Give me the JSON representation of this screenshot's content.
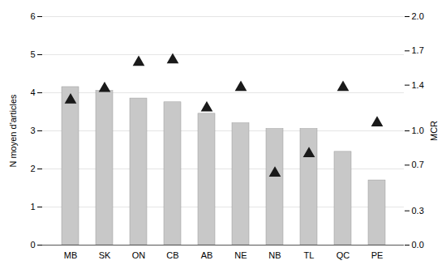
{
  "chart_data": {
    "type": "bar",
    "categories": [
      "MB",
      "SK",
      "ON",
      "CB",
      "AB",
      "NE",
      "NB",
      "TL",
      "QC",
      "PE"
    ],
    "series": [
      {
        "type": "bar",
        "color": "#c8c8c8",
        "values": [
          4.15,
          4.05,
          3.85,
          3.75,
          3.45,
          3.2,
          3.05,
          3.05,
          2.45,
          1.7
        ]
      },
      {
        "type": "scatter",
        "axis": "y2",
        "marker": "triangle",
        "color": "#1a1a1a",
        "values": [
          1.27,
          1.37,
          1.6,
          1.62,
          1.2,
          1.38,
          0.63,
          0.8,
          1.38,
          1.07
        ]
      }
    ],
    "ylabel": "N moyen d'articles",
    "y2label": "MCR",
    "ylim": [
      0,
      6
    ],
    "yticks": [
      0,
      1,
      2,
      3,
      4,
      5,
      6
    ],
    "y2lim": [
      0.0,
      2.0
    ],
    "y2ticks": [
      {
        "value": 0.0,
        "label": "0.0"
      },
      0.3,
      0.7,
      {
        "value": 1.0,
        "label": "1.0"
      },
      1.4,
      1.7,
      {
        "value": 2.0,
        "label": "2.0"
      }
    ],
    "grid": true
  }
}
